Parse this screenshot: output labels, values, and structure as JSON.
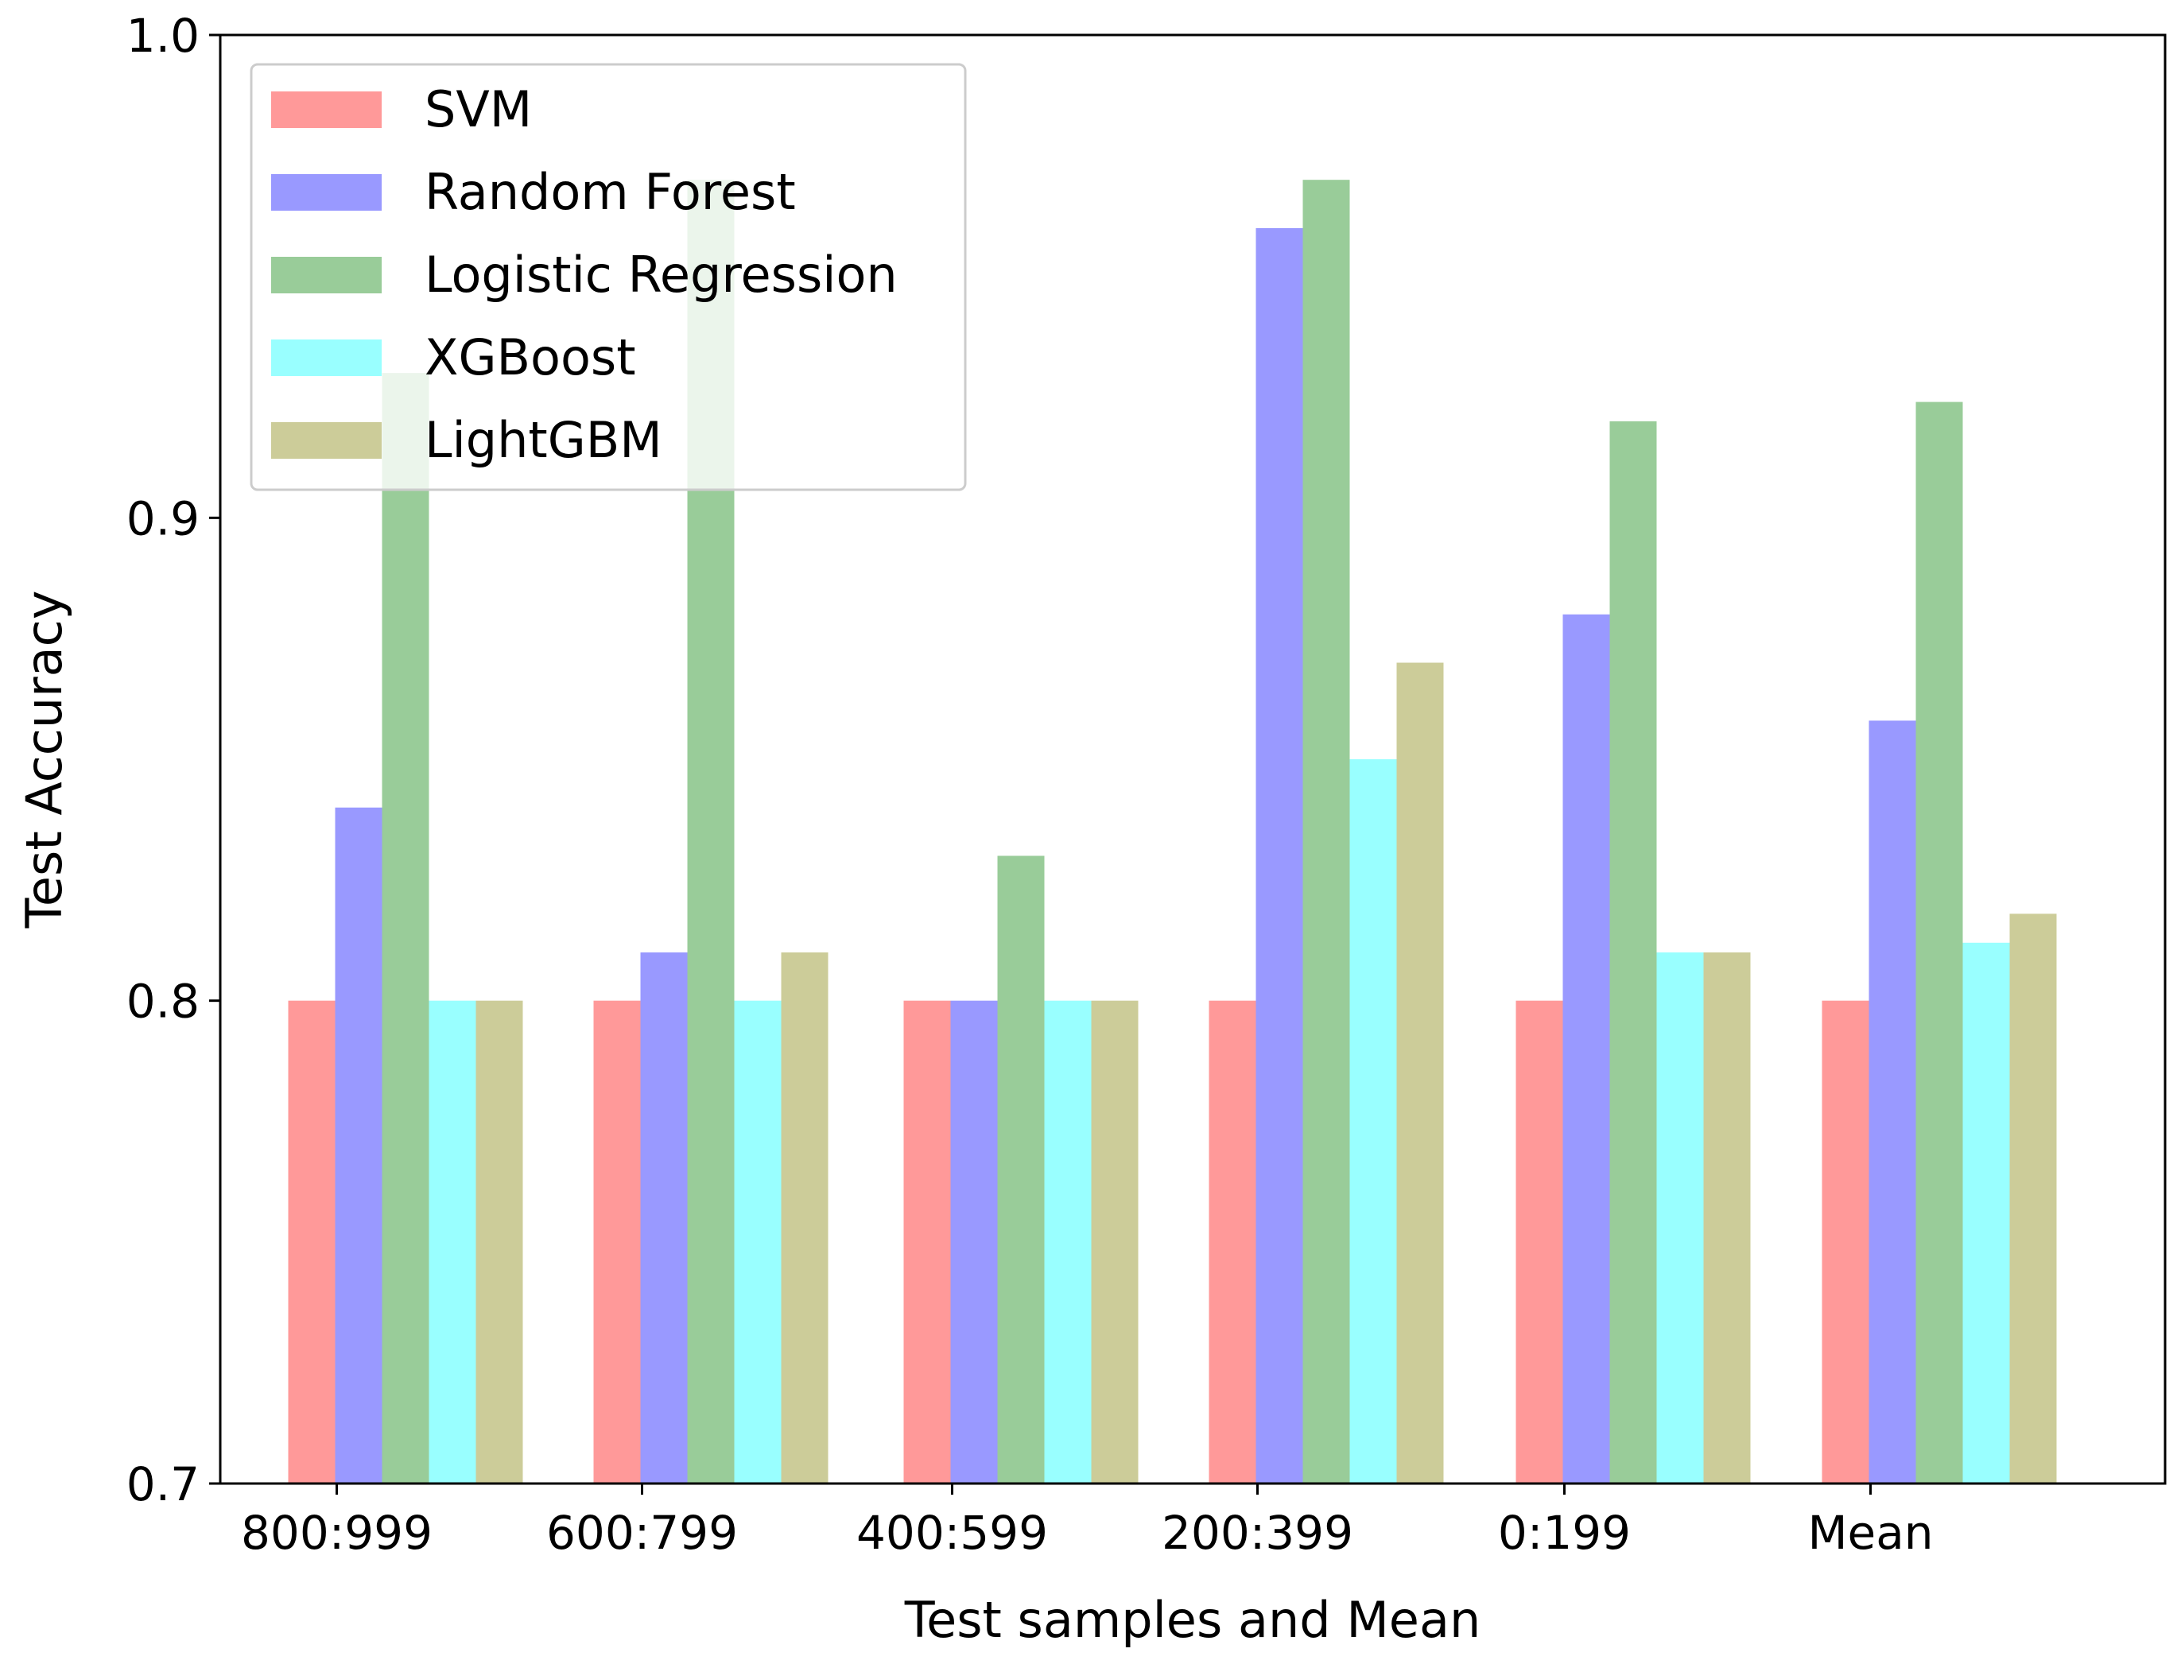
{
  "chart_data": {
    "type": "bar",
    "title": "",
    "xlabel": "Test samples and Mean",
    "ylabel": "Test Accuracy",
    "ylim": [
      0.7,
      1.0
    ],
    "yticks": [
      0.7,
      0.8,
      0.9,
      1.0
    ],
    "ytick_labels": [
      "0.7",
      "0.8",
      "0.9",
      "1.0"
    ],
    "categories": [
      "800:999",
      "600:799",
      "400:599",
      "200:399",
      "0:199",
      "Mean"
    ],
    "grid": false,
    "legend_position": "top-left",
    "series": [
      {
        "name": "SVM",
        "color": "#ff9999",
        "values": [
          0.8,
          0.8,
          0.8,
          0.8,
          0.8,
          0.8
        ]
      },
      {
        "name": "Random Forest",
        "color": "#9999ff",
        "values": [
          0.84,
          0.81,
          0.8,
          0.96,
          0.88,
          0.858
        ]
      },
      {
        "name": "Logistic Regression",
        "color": "#99cc99",
        "values": [
          0.93,
          0.97,
          0.83,
          0.97,
          0.92,
          0.924
        ]
      },
      {
        "name": "XGBoost",
        "color": "#99ffff",
        "values": [
          0.8,
          0.8,
          0.8,
          0.85,
          0.81,
          0.812
        ]
      },
      {
        "name": "LightGBM",
        "color": "#cccc99",
        "values": [
          0.8,
          0.81,
          0.8,
          0.87,
          0.81,
          0.818
        ]
      }
    ]
  }
}
